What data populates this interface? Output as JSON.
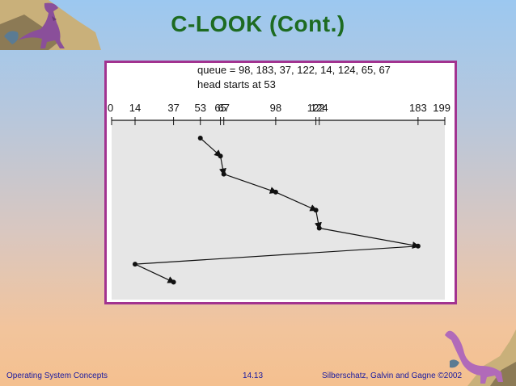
{
  "slide": {
    "title": "C-LOOK (Cont.)",
    "footer_left": "Operating System Concepts",
    "footer_page": "14.13",
    "footer_right": "Silberschatz, Galvin and  Gagne ©2002"
  },
  "figure": {
    "queue_text": "queue = 98, 183, 37, 122, 14, 124, 65, 67",
    "head_text": "head starts at 53",
    "ticks": [
      0,
      14,
      37,
      53,
      65,
      67,
      98,
      122,
      124,
      183,
      199
    ],
    "cylinder_range": [
      0,
      199
    ],
    "service_order": [
      53,
      65,
      67,
      98,
      122,
      124,
      183,
      14,
      37
    ]
  },
  "colors": {
    "title": "#1d6b21",
    "frame": "#a23390",
    "plot_bg": "#e6e6e6",
    "footer": "#1a1aa0"
  }
}
